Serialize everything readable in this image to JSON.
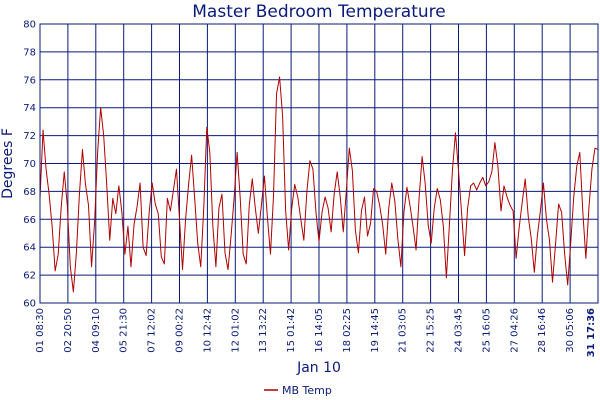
{
  "chart_data": {
    "type": "line",
    "title": "Master Bedroom Temperature",
    "ylabel": "Degrees F",
    "xlabel": "Jan 10",
    "ylim": [
      60,
      80
    ],
    "yticks": [
      "60",
      "62",
      "64",
      "66",
      "68",
      "70",
      "72",
      "74",
      "76",
      "78",
      "80"
    ],
    "xticks": [
      "01 08:30",
      "02 20:50",
      "04 09:10",
      "05 21:30",
      "07 12:02",
      "09 00:22",
      "10 12:42",
      "12 01:02",
      "13 13:22",
      "15 01:42",
      "16 14:05",
      "18 02:25",
      "19 14:45",
      "21 03:05",
      "22 15:25",
      "24 03:45",
      "25 16:05",
      "27 04:26",
      "28 16:46",
      "30 05:06",
      "31 17:36"
    ],
    "grid": true,
    "legend_position": "bottom",
    "series": [
      {
        "name": "MB Temp",
        "color": "#b00000",
        "values": [
          67.5,
          72.4,
          69.6,
          67.8,
          65.5,
          62.3,
          63.5,
          66.9,
          69.4,
          67.0,
          62.6,
          60.8,
          63.6,
          67.8,
          71.0,
          68.5,
          67.0,
          62.6,
          65.8,
          70.8,
          74.0,
          72.0,
          68.5,
          64.5,
          67.5,
          66.4,
          68.4,
          66.5,
          63.5,
          65.5,
          62.6,
          65.6,
          66.9,
          68.6,
          64.0,
          63.4,
          66.5,
          68.6,
          67.1,
          66.4,
          63.3,
          62.8,
          67.5,
          66.6,
          68.1,
          69.6,
          66.0,
          62.4,
          66.0,
          68.5,
          70.6,
          67.5,
          64.3,
          62.6,
          66.8,
          72.6,
          70.8,
          65.5,
          62.6,
          66.8,
          67.8,
          63.6,
          62.4,
          64.8,
          67.5,
          70.8,
          67.6,
          63.5,
          62.8,
          67.0,
          68.9,
          66.8,
          65.0,
          67.0,
          69.1,
          66.1,
          63.5,
          67.7,
          75.0,
          76.2,
          73.4,
          66.6,
          63.8,
          66.8,
          68.5,
          67.6,
          66.0,
          64.5,
          68.0,
          70.2,
          69.6,
          66.5,
          64.4,
          66.5,
          67.6,
          66.8,
          65.1,
          67.8,
          69.4,
          67.6,
          65.1,
          68.0,
          71.1,
          69.5,
          65.2,
          63.6,
          66.6,
          67.6,
          64.8,
          65.7,
          68.2,
          68.0,
          67.0,
          65.6,
          63.5,
          66.8,
          68.6,
          67.3,
          64.6,
          62.6,
          66.5,
          68.3,
          67.0,
          65.5,
          63.8,
          67.5,
          70.5,
          68.6,
          65.6,
          64.3,
          66.8,
          68.2,
          67.4,
          65.5,
          61.8,
          65.6,
          69.5,
          72.2,
          69.5,
          66.5,
          63.4,
          66.8,
          68.4,
          68.6,
          68.1,
          68.6,
          69.0,
          68.4,
          68.7,
          69.4,
          71.5,
          69.8,
          66.6,
          68.4,
          67.6,
          67.0,
          66.6,
          63.2,
          65.4,
          67.2,
          68.9,
          66.2,
          64.6,
          62.2,
          64.8,
          66.6,
          68.6,
          66.0,
          64.5,
          61.5,
          64.2,
          67.1,
          66.5,
          63.5,
          61.3,
          64.3,
          67.6,
          69.8,
          70.8,
          66.5,
          63.2,
          66.8,
          69.6,
          71.1,
          71.0
        ]
      }
    ]
  }
}
